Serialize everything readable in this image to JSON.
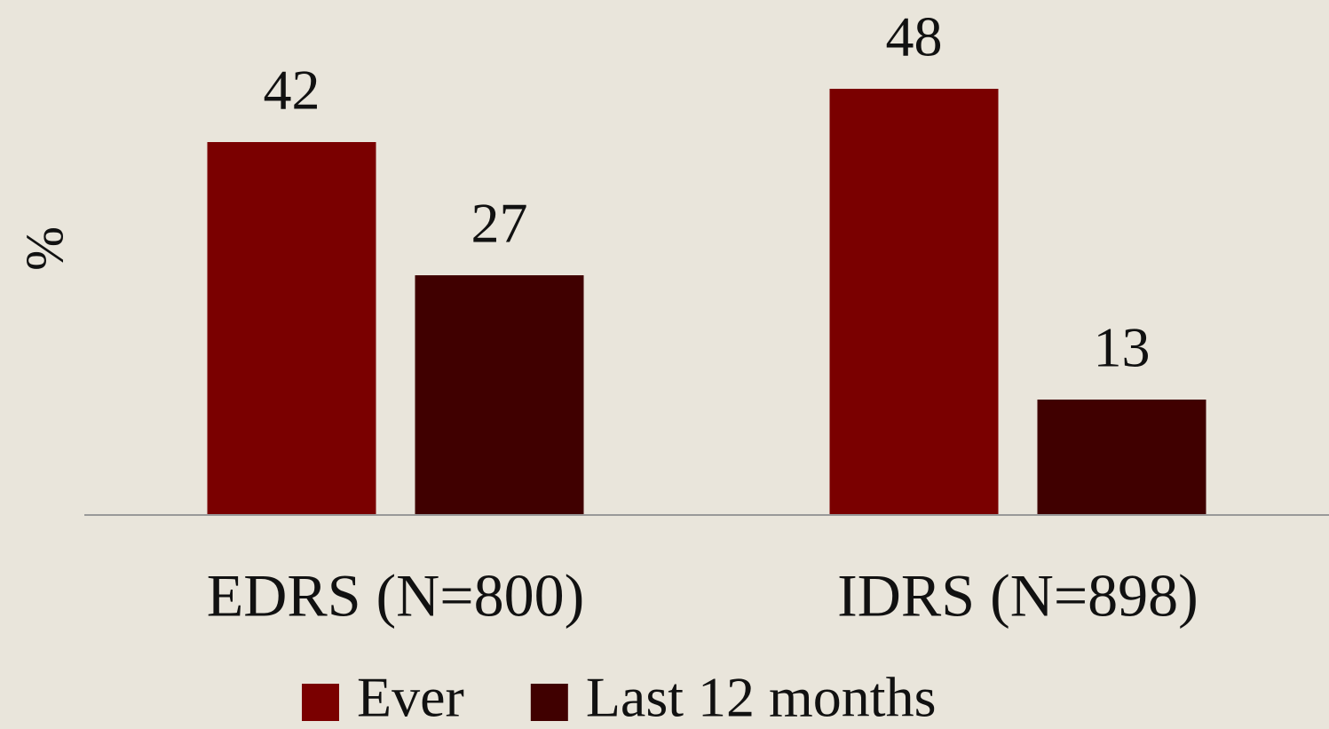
{
  "chart_data": {
    "type": "bar",
    "y_label": "%",
    "categories": [
      "EDRS (N=800)",
      "IDRS (N=898)"
    ],
    "series": [
      {
        "name": "Ever",
        "color": "#7a0000",
        "values": [
          42,
          48
        ]
      },
      {
        "name": "Last 12 months",
        "color": "#400000",
        "values": [
          27,
          13
        ]
      }
    ],
    "ylim": [
      0,
      58
    ],
    "legend": "bottom"
  }
}
